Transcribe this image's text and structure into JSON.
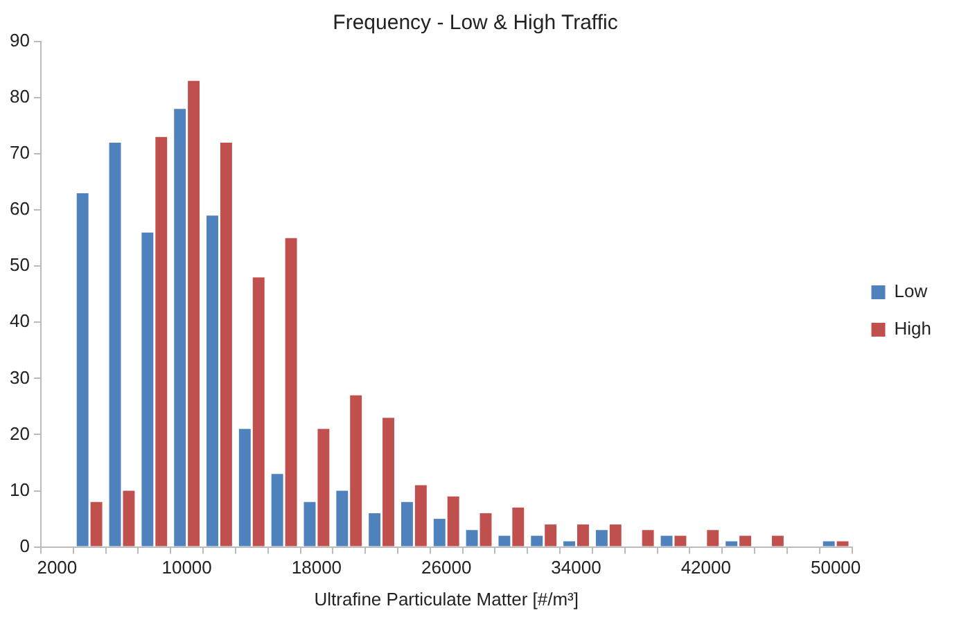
{
  "chart_data": {
    "type": "bar",
    "title": "Frequency - Low & High Traffic",
    "xlabel": "Ultrafine Particulate Matter [#/m³]",
    "categories": [
      "2000",
      null,
      null,
      null,
      "10000",
      null,
      null,
      null,
      "18000",
      null,
      null,
      null,
      "26000",
      null,
      null,
      null,
      "34000",
      null,
      null,
      null,
      "42000",
      null,
      null,
      null,
      "50000"
    ],
    "series": [
      {
        "name": "Low",
        "color": "#4f81bd",
        "values": [
          0,
          63,
          72,
          56,
          78,
          59,
          21,
          13,
          8,
          10,
          6,
          8,
          5,
          3,
          2,
          2,
          1,
          3,
          0,
          2,
          0,
          1,
          0,
          0,
          1
        ]
      },
      {
        "name": "High",
        "color": "#c0504d",
        "values": [
          0,
          8,
          10,
          73,
          83,
          72,
          48,
          55,
          21,
          27,
          23,
          11,
          9,
          6,
          7,
          4,
          4,
          4,
          3,
          2,
          3,
          2,
          2,
          0,
          1
        ]
      }
    ],
    "ylim": [
      0,
      90
    ],
    "yticks": [
      0,
      10,
      20,
      30,
      40,
      50,
      60,
      70,
      80,
      90
    ],
    "grid": false,
    "legend": "right"
  }
}
